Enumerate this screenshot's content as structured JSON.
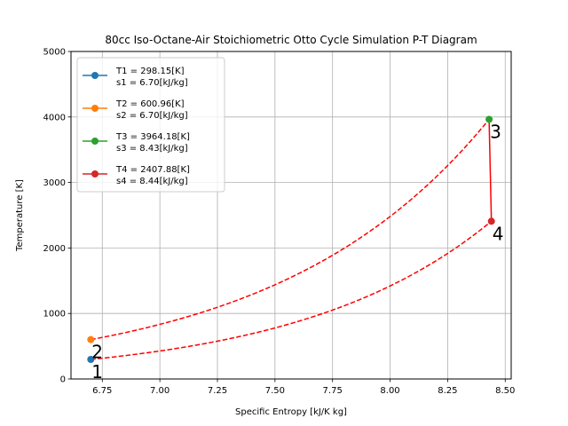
{
  "chart_data": {
    "type": "scatter",
    "title": "80cc Iso-Octane-Air Stoichiometric Otto Cycle Simulation P-T Diagram",
    "xlabel": "Specific Entropy [kJ/K kg]",
    "ylabel": "Temperature [K]",
    "xlim": [
      6.614,
      8.526
    ],
    "ylim": [
      0,
      5000
    ],
    "xticks": [
      6.75,
      7.0,
      7.25,
      7.5,
      7.75,
      8.0,
      8.25,
      8.5
    ],
    "xtick_labels": [
      "6.75",
      "7.00",
      "7.25",
      "7.50",
      "7.75",
      "8.00",
      "8.25",
      "8.50"
    ],
    "yticks": [
      0,
      1000,
      2000,
      3000,
      4000,
      5000
    ],
    "ytick_labels": [
      "0",
      "1000",
      "2000",
      "3000",
      "4000",
      "5000"
    ],
    "grid": true,
    "legend_position": "top-left",
    "series": [
      {
        "label_line1": "T1 = 298.15[K]",
        "label_line2": "s1 = 6.70[kJ/kg]",
        "x": 6.7,
        "y": 298.15,
        "color": "#1f77b4",
        "point_label": "1"
      },
      {
        "label_line1": "T2 = 600.96[K]",
        "label_line2": "s2 = 6.70[kJ/kg]",
        "x": 6.7,
        "y": 600.96,
        "color": "#ff7f0e",
        "point_label": "2"
      },
      {
        "label_line1": "T3 = 3964.18[K]",
        "label_line2": "s3 = 8.43[kJ/kg]",
        "x": 8.43,
        "y": 3964.18,
        "color": "#2ca02c",
        "point_label": "3"
      },
      {
        "label_line1": "T4 = 2407.88[K]",
        "label_line2": "s4 = 8.44[kJ/kg]",
        "x": 8.44,
        "y": 2407.88,
        "color": "#d62728",
        "point_label": "4"
      }
    ],
    "process_line_color": "#ff0000",
    "curves": [
      {
        "kind": "dashed",
        "from": 1,
        "to": 4
      },
      {
        "kind": "dashed",
        "from": 2,
        "to": 3
      },
      {
        "kind": "solid",
        "from": 3,
        "to": 4
      }
    ]
  }
}
